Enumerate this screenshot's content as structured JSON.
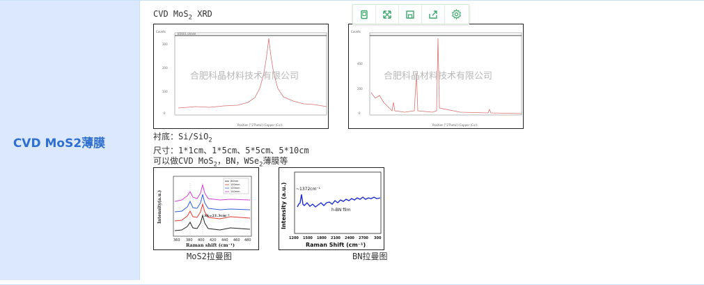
{
  "row": {
    "label": "CVD MoS2薄膜"
  },
  "content": {
    "heading_prefix": "CVD MoS",
    "heading_sub": "2",
    "heading_suffix": " XRD",
    "substrate_prefix": "衬底：Si/SiO",
    "substrate_sub": "2",
    "sizes": "尺寸：1*1cm、1*5cm、5*5cm、5*10cm",
    "types_a": "可以做CVD MoS",
    "types_sub1": "2",
    "types_b": "，BN，WSe",
    "types_sub2": "2",
    "types_c": "薄膜等",
    "caption_mos2": "MoS2拉曼图",
    "caption_bn": "BN拉曼图"
  },
  "toolbar": {
    "icons": [
      "copy-icon",
      "expand-icon",
      "save-icon",
      "share-icon",
      "settings-icon"
    ]
  },
  "xrd_left": {
    "watermark": "合肥科晶材料技术有限公司"
  },
  "xrd_right": {
    "watermark": "合肥科晶材料技术有限公司"
  },
  "raman_mos2": {
    "ylabel": "Intensity(a.u.)",
    "xlabel": "Raman shift (cm⁻¹)",
    "xticks": [
      "360",
      "380",
      "400",
      "420",
      "440",
      "460",
      "480"
    ],
    "legend": [
      "80mm",
      "100mm",
      "120mm",
      "140mm"
    ],
    "annotation": "Δk=21.3cm⁻¹"
  },
  "raman_bn": {
    "ylabel": "Intensity (a.u.)",
    "xlabel": "Raman Shift (cm⁻¹)",
    "xticks": [
      "1200",
      "1500",
      "1800",
      "2100",
      "2400",
      "2700",
      "300"
    ],
    "peak_label": "~1372cm⁻¹",
    "film_label": "h-BN film"
  },
  "colors": {
    "label_bg": "#dbe8fd",
    "label_text": "#2f6fd0",
    "toolbar_icon": "#3aa76d",
    "xrd_line": "#d9706e",
    "bn_line": "#1a2bcf"
  }
}
